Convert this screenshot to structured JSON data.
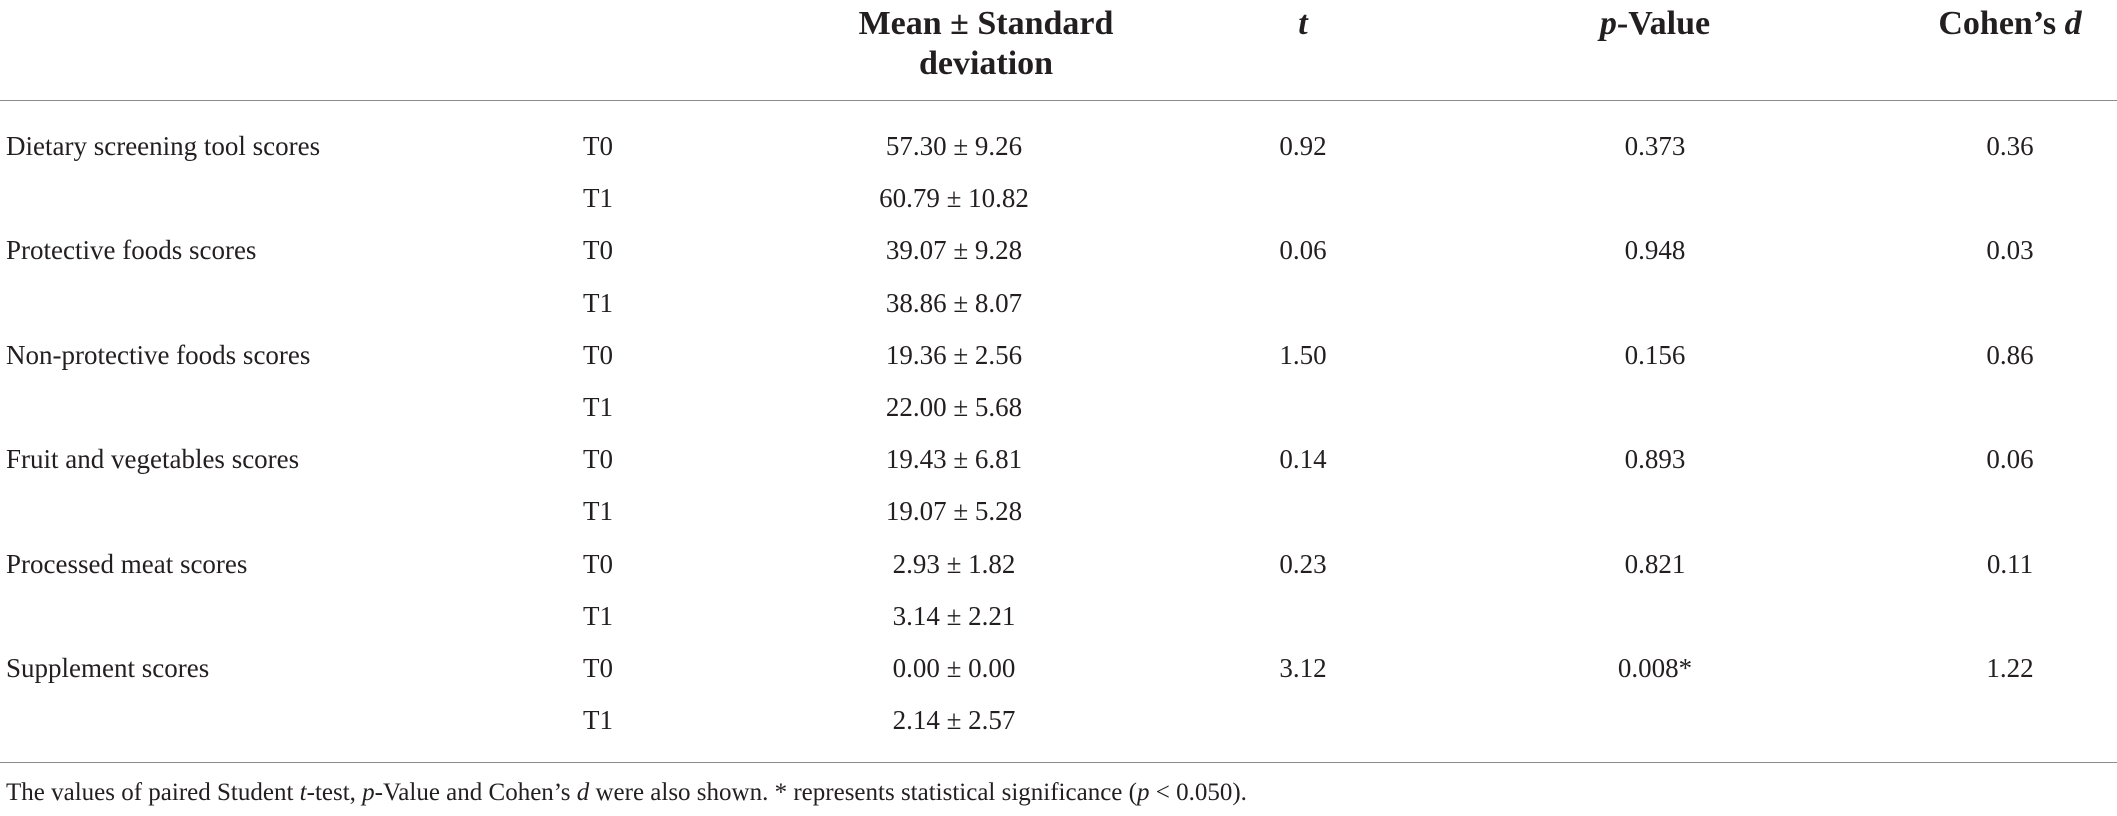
{
  "header": {
    "col_mean": "Mean ± Standard deviation",
    "col_t": "t",
    "col_p_italic": "p",
    "col_p_rest": "-Value",
    "col_d_prefix": "Cohen’s ",
    "col_d_italic": "d"
  },
  "rows": [
    {
      "label": "Dietary screening tool scores",
      "time": "T0",
      "mean": "57.30 ± 9.26",
      "t": "0.92",
      "p": "0.373",
      "d": "0.36"
    },
    {
      "label": "",
      "time": "T1",
      "mean": "60.79 ± 10.82",
      "t": "",
      "p": "",
      "d": ""
    },
    {
      "label": "Protective foods scores",
      "time": "T0",
      "mean": "39.07 ± 9.28",
      "t": "0.06",
      "p": "0.948",
      "d": "0.03"
    },
    {
      "label": "",
      "time": "T1",
      "mean": "38.86 ± 8.07",
      "t": "",
      "p": "",
      "d": ""
    },
    {
      "label": "Non-protective foods scores",
      "time": "T0",
      "mean": "19.36 ± 2.56",
      "t": "1.50",
      "p": "0.156",
      "d": "0.86"
    },
    {
      "label": "",
      "time": "T1",
      "mean": "22.00 ± 5.68",
      "t": "",
      "p": "",
      "d": ""
    },
    {
      "label": "Fruit and vegetables scores",
      "time": "T0",
      "mean": "19.43 ± 6.81",
      "t": "0.14",
      "p": "0.893",
      "d": "0.06"
    },
    {
      "label": "",
      "time": "T1",
      "mean": "19.07 ± 5.28",
      "t": "",
      "p": "",
      "d": ""
    },
    {
      "label": "Processed meat scores",
      "time": "T0",
      "mean": "2.93 ± 1.82",
      "t": "0.23",
      "p": "0.821",
      "d": "0.11"
    },
    {
      "label": "",
      "time": "T1",
      "mean": "3.14 ± 2.21",
      "t": "",
      "p": "",
      "d": ""
    },
    {
      "label": "Supplement scores",
      "time": "T0",
      "mean": "0.00 ± 0.00",
      "t": "3.12",
      "p": "0.008*",
      "d": "1.22"
    },
    {
      "label": "",
      "time": "T1",
      "mean": "2.14 ± 2.57",
      "t": "",
      "p": "",
      "d": ""
    }
  ],
  "footnote": {
    "part1": "The values of paired Student ",
    "t_italic": "t",
    "part2": "-test, ",
    "p_italic": "p",
    "part3": "-Value and Cohen’s ",
    "d_italic": "d",
    "part4": " were also shown. * represents statistical significance (",
    "p2_italic": "p",
    "part5": " < 0.050)."
  }
}
